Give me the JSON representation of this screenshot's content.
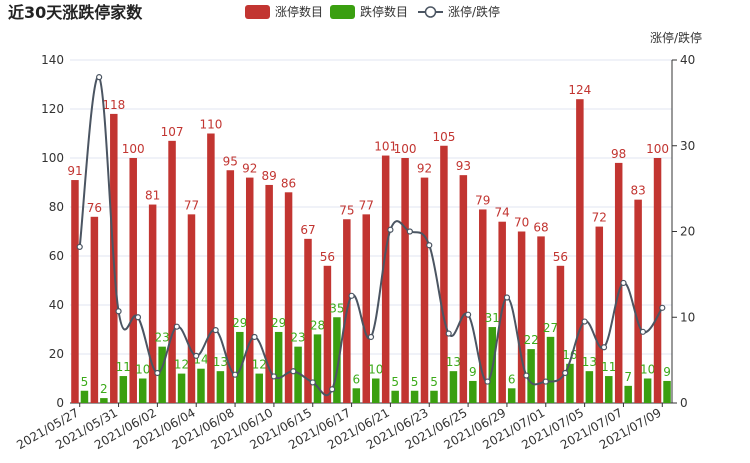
{
  "chart_data": {
    "type": "bar",
    "title": "近30天涨跌停家数",
    "legend": [
      "涨停数目",
      "跌停数目",
      "涨停/跌停"
    ],
    "legend_placement": "top-center",
    "colors": {
      "up": "#c23531",
      "down": "#3a9f10",
      "ratio": "#4b5562"
    },
    "secondary_axis_name": "涨停/跌停",
    "x_tick_labels": [
      "2021/05/27",
      "2021/05/31",
      "2021/06/02",
      "2021/06/04",
      "2021/06/08",
      "2021/06/10",
      "2021/06/15",
      "2021/06/17",
      "2021/06/21",
      "2021/06/23",
      "2021/06/25",
      "2021/06/29",
      "2021/07/01",
      "2021/07/05",
      "2021/07/07",
      "2021/07/09"
    ],
    "ylim_left": [
      0,
      140
    ],
    "yticks_left": [
      0,
      20,
      40,
      60,
      80,
      100,
      120,
      140
    ],
    "ylim_right": [
      0,
      40
    ],
    "yticks_right": [
      0,
      10,
      20,
      30,
      40
    ],
    "series": [
      {
        "name": "涨停数目",
        "values": [
          91,
          76,
          118,
          100,
          81,
          107,
          77,
          110,
          95,
          92,
          89,
          86,
          67,
          56,
          75,
          77,
          101,
          100,
          92,
          105,
          93,
          79,
          74,
          70,
          68,
          56,
          124,
          72,
          98,
          83,
          100
        ]
      },
      {
        "name": "跌停数目",
        "values": [
          5,
          2,
          11,
          10,
          23,
          12,
          14,
          13,
          29,
          12,
          29,
          23,
          28,
          35,
          6,
          10,
          5,
          5,
          5,
          13,
          9,
          31,
          6,
          22,
          27,
          16,
          13,
          11,
          7,
          10,
          9
        ]
      },
      {
        "name": "涨停/跌停",
        "values": [
          18.2,
          38.0,
          10.7,
          10.0,
          3.5,
          8.9,
          5.5,
          8.5,
          3.3,
          7.7,
          3.1,
          3.7,
          2.4,
          1.6,
          12.5,
          7.7,
          20.2,
          20.0,
          18.4,
          8.1,
          10.3,
          2.5,
          12.3,
          3.2,
          2.5,
          3.5,
          9.5,
          6.5,
          14.0,
          8.3,
          11.1
        ]
      }
    ],
    "grid": true
  }
}
